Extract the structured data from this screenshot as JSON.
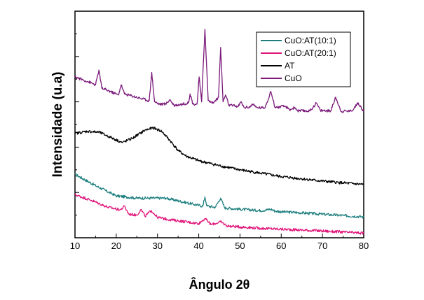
{
  "chart_data": {
    "type": "line",
    "title": "",
    "xlabel": "Ângulo 2θ",
    "ylabel": "Intensidade (u.a)",
    "xlim": [
      10,
      80
    ],
    "ylim": [
      0,
      100
    ],
    "x_ticks": [
      10,
      20,
      30,
      40,
      50,
      60,
      70,
      80
    ],
    "y_ticks_labeled": false,
    "grid": false,
    "legend_position": "top-right",
    "series": [
      {
        "name": "CuO:AT(10:1)",
        "color": "#1f7f7f",
        "points": [
          [
            10,
            28
          ],
          [
            15,
            23
          ],
          [
            20,
            18.5
          ],
          [
            25,
            17.5
          ],
          [
            28,
            17.5
          ],
          [
            32,
            17.5
          ],
          [
            37,
            15.5
          ],
          [
            40,
            14.3
          ],
          [
            41,
            14
          ],
          [
            41.5,
            18
          ],
          [
            42,
            14
          ],
          [
            44,
            13.5
          ],
          [
            45.3,
            17.5
          ],
          [
            46.3,
            13.2
          ],
          [
            50,
            12.6
          ],
          [
            55,
            12
          ],
          [
            57.5,
            12.6
          ],
          [
            58.5,
            11.8
          ],
          [
            60,
            11.5
          ],
          [
            65,
            11
          ],
          [
            70,
            10.4
          ],
          [
            75,
            9.8
          ],
          [
            79.5,
            9.3
          ],
          [
            80,
            9
          ]
        ]
      },
      {
        "name": "CuO:AT(20:1)",
        "color": "#e0157a",
        "points": [
          [
            10,
            19
          ],
          [
            14,
            16.5
          ],
          [
            18,
            13.5
          ],
          [
            21,
            12.3
          ],
          [
            22,
            14
          ],
          [
            23,
            10.5
          ],
          [
            25,
            10
          ],
          [
            26,
            12.5
          ],
          [
            27,
            9.5
          ],
          [
            28.5,
            12
          ],
          [
            30,
            9
          ],
          [
            33,
            8
          ],
          [
            35,
            7.5
          ],
          [
            40,
            6.3
          ],
          [
            41.5,
            8.5
          ],
          [
            43,
            5.8
          ],
          [
            45.3,
            7
          ],
          [
            47,
            5.2
          ],
          [
            50,
            4.8
          ],
          [
            55,
            4.2
          ],
          [
            60,
            3.8
          ],
          [
            65,
            3.4
          ],
          [
            70,
            3
          ],
          [
            75,
            2.5
          ],
          [
            80,
            2
          ]
        ]
      },
      {
        "name": "AT",
        "color": "#000000",
        "points": [
          [
            10,
            46
          ],
          [
            13,
            47
          ],
          [
            16,
            46.5
          ],
          [
            19,
            44
          ],
          [
            21.5,
            42
          ],
          [
            24,
            44
          ],
          [
            27,
            47.5
          ],
          [
            29,
            48.5
          ],
          [
            31,
            47
          ],
          [
            33,
            43
          ],
          [
            35,
            38.5
          ],
          [
            37,
            36
          ],
          [
            40,
            34
          ],
          [
            45,
            31.8
          ],
          [
            50,
            30
          ],
          [
            55,
            28.5
          ],
          [
            60,
            27
          ],
          [
            65,
            26
          ],
          [
            70,
            25
          ],
          [
            75,
            24.2
          ],
          [
            80,
            23.5
          ]
        ]
      },
      {
        "name": "CuO",
        "color": "#7b1a7b",
        "points": [
          [
            10,
            71
          ],
          [
            13,
            69
          ],
          [
            15,
            67.5
          ],
          [
            15.8,
            74
          ],
          [
            16.5,
            66
          ],
          [
            18,
            65
          ],
          [
            20.5,
            63
          ],
          [
            21.2,
            67.5
          ],
          [
            22,
            63.5
          ],
          [
            25,
            62
          ],
          [
            28,
            60.5
          ],
          [
            28.6,
            73
          ],
          [
            29.3,
            60
          ],
          [
            30.5,
            59
          ],
          [
            32,
            59
          ],
          [
            33,
            61
          ],
          [
            34,
            58.5
          ],
          [
            35.5,
            58.8
          ],
          [
            37.5,
            59.5
          ],
          [
            37.9,
            63.5
          ],
          [
            38.6,
            59
          ],
          [
            39.6,
            59
          ],
          [
            40.1,
            71
          ],
          [
            40.7,
            60
          ],
          [
            41.5,
            92
          ],
          [
            42.3,
            60.5
          ],
          [
            43.5,
            59.5
          ],
          [
            44.8,
            62
          ],
          [
            45.3,
            84
          ],
          [
            45.9,
            60
          ],
          [
            46.5,
            63
          ],
          [
            47.3,
            58.5
          ],
          [
            49.6,
            58
          ],
          [
            50.2,
            60
          ],
          [
            51,
            57.5
          ],
          [
            52.5,
            57.8
          ],
          [
            53,
            59
          ],
          [
            54,
            57.5
          ],
          [
            56,
            57.3
          ],
          [
            57.5,
            64.5
          ],
          [
            58.5,
            57.5
          ],
          [
            61,
            58
          ],
          [
            62,
            56.5
          ],
          [
            63.3,
            57.5
          ],
          [
            64,
            56
          ],
          [
            67,
            56
          ],
          [
            68.5,
            59.5
          ],
          [
            69.5,
            56.2
          ],
          [
            72,
            56
          ],
          [
            73.2,
            62
          ],
          [
            74.5,
            55.8
          ],
          [
            77,
            56
          ],
          [
            78.7,
            59.5
          ],
          [
            80,
            55.8
          ]
        ]
      }
    ]
  }
}
